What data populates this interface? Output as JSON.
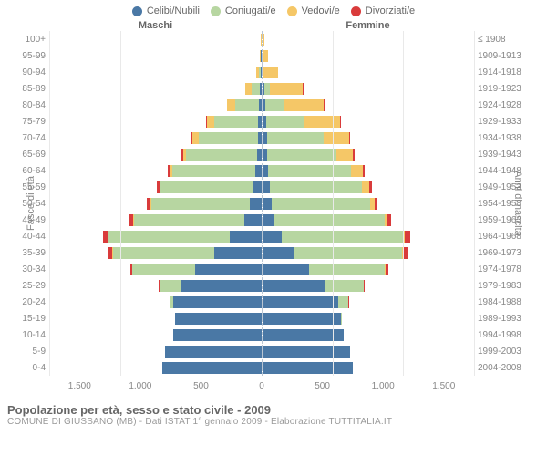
{
  "legend": {
    "items": [
      {
        "label": "Celibi/Nubili",
        "color": "#4a78a5"
      },
      {
        "label": "Coniugati/e",
        "color": "#b7d6a1"
      },
      {
        "label": "Vedovi/e",
        "color": "#f5c767"
      },
      {
        "label": "Divorziati/e",
        "color": "#d93b3b"
      }
    ]
  },
  "header": {
    "left": "Maschi",
    "right": "Femmine"
  },
  "axis": {
    "left_title": "Fasce di età",
    "right_title": "Anni di nascita",
    "x_max": 1500,
    "x_ticks_left": [
      "1.500",
      "1.000",
      "500"
    ],
    "x_ticks_mid": "0",
    "x_ticks_right": [
      "500",
      "1.000",
      "1.500"
    ]
  },
  "colors": {
    "celibi": "#4a78a5",
    "coniugati": "#b7d6a1",
    "vedovi": "#f5c767",
    "divorziati": "#d93b3b",
    "grid": "#e9e9e9",
    "midline": "#b9c6d3",
    "bg": "#ffffff"
  },
  "caption": {
    "main": "Popolazione per età, sesso e stato civile - 2009",
    "sub": "COMUNE DI GIUSSANO (MB) - Dati ISTAT 1° gennaio 2009 - Elaborazione TUTTITALIA.IT"
  },
  "rows": [
    {
      "age": "100+",
      "born": "≤ 1908",
      "m": {
        "c": 0,
        "k": 0,
        "v": 5,
        "d": 0
      },
      "f": {
        "c": 0,
        "k": 0,
        "v": 15,
        "d": 0
      }
    },
    {
      "age": "95-99",
      "born": "1909-1913",
      "m": {
        "c": 3,
        "k": 2,
        "v": 8,
        "d": 0
      },
      "f": {
        "c": 2,
        "k": 0,
        "v": 40,
        "d": 0
      }
    },
    {
      "age": "90-94",
      "born": "1914-1918",
      "m": {
        "c": 5,
        "k": 10,
        "v": 20,
        "d": 0
      },
      "f": {
        "c": 5,
        "k": 5,
        "v": 100,
        "d": 0
      }
    },
    {
      "age": "85-89",
      "born": "1919-1923",
      "m": {
        "c": 10,
        "k": 60,
        "v": 40,
        "d": 2
      },
      "f": {
        "c": 15,
        "k": 40,
        "v": 230,
        "d": 2
      }
    },
    {
      "age": "80-84",
      "born": "1924-1928",
      "m": {
        "c": 15,
        "k": 170,
        "v": 55,
        "d": 4
      },
      "f": {
        "c": 25,
        "k": 130,
        "v": 280,
        "d": 4
      }
    },
    {
      "age": "75-79",
      "born": "1929-1933",
      "m": {
        "c": 20,
        "k": 310,
        "v": 55,
        "d": 6
      },
      "f": {
        "c": 30,
        "k": 270,
        "v": 250,
        "d": 6
      }
    },
    {
      "age": "70-74",
      "born": "1934-1938",
      "m": {
        "c": 25,
        "k": 420,
        "v": 40,
        "d": 8
      },
      "f": {
        "c": 35,
        "k": 400,
        "v": 180,
        "d": 8
      }
    },
    {
      "age": "65-69",
      "born": "1939-1943",
      "m": {
        "c": 30,
        "k": 500,
        "v": 25,
        "d": 10
      },
      "f": {
        "c": 35,
        "k": 490,
        "v": 120,
        "d": 12
      }
    },
    {
      "age": "60-64",
      "born": "1944-1948",
      "m": {
        "c": 40,
        "k": 590,
        "v": 15,
        "d": 14
      },
      "f": {
        "c": 40,
        "k": 590,
        "v": 80,
        "d": 16
      }
    },
    {
      "age": "55-59",
      "born": "1949-1953",
      "m": {
        "c": 60,
        "k": 650,
        "v": 10,
        "d": 18
      },
      "f": {
        "c": 55,
        "k": 650,
        "v": 50,
        "d": 20
      }
    },
    {
      "age": "50-54",
      "born": "1954-1958",
      "m": {
        "c": 80,
        "k": 700,
        "v": 6,
        "d": 22
      },
      "f": {
        "c": 65,
        "k": 700,
        "v": 30,
        "d": 24
      }
    },
    {
      "age": "45-49",
      "born": "1959-1963",
      "m": {
        "c": 120,
        "k": 780,
        "v": 4,
        "d": 28
      },
      "f": {
        "c": 85,
        "k": 780,
        "v": 18,
        "d": 30
      }
    },
    {
      "age": "40-44",
      "born": "1964-1968",
      "m": {
        "c": 220,
        "k": 860,
        "v": 3,
        "d": 34
      },
      "f": {
        "c": 140,
        "k": 860,
        "v": 10,
        "d": 38
      }
    },
    {
      "age": "35-39",
      "born": "1969-1973",
      "m": {
        "c": 330,
        "k": 720,
        "v": 2,
        "d": 26
      },
      "f": {
        "c": 230,
        "k": 760,
        "v": 6,
        "d": 30
      }
    },
    {
      "age": "30-34",
      "born": "1974-1978",
      "m": {
        "c": 470,
        "k": 440,
        "v": 0,
        "d": 14
      },
      "f": {
        "c": 330,
        "k": 540,
        "v": 3,
        "d": 18
      }
    },
    {
      "age": "25-29",
      "born": "1979-1983",
      "m": {
        "c": 570,
        "k": 150,
        "v": 0,
        "d": 6
      },
      "f": {
        "c": 440,
        "k": 280,
        "v": 0,
        "d": 8
      }
    },
    {
      "age": "20-24",
      "born": "1984-1988",
      "m": {
        "c": 620,
        "k": 20,
        "v": 0,
        "d": 2
      },
      "f": {
        "c": 540,
        "k": 70,
        "v": 0,
        "d": 3
      }
    },
    {
      "age": "15-19",
      "born": "1989-1993",
      "m": {
        "c": 610,
        "k": 0,
        "v": 0,
        "d": 0
      },
      "f": {
        "c": 560,
        "k": 3,
        "v": 0,
        "d": 0
      }
    },
    {
      "age": "10-14",
      "born": "1994-1998",
      "m": {
        "c": 620,
        "k": 0,
        "v": 0,
        "d": 0
      },
      "f": {
        "c": 580,
        "k": 0,
        "v": 0,
        "d": 0
      }
    },
    {
      "age": "5-9",
      "born": "1999-2003",
      "m": {
        "c": 680,
        "k": 0,
        "v": 0,
        "d": 0
      },
      "f": {
        "c": 620,
        "k": 0,
        "v": 0,
        "d": 0
      }
    },
    {
      "age": "0-4",
      "born": "2004-2008",
      "m": {
        "c": 700,
        "k": 0,
        "v": 0,
        "d": 0
      },
      "f": {
        "c": 640,
        "k": 0,
        "v": 0,
        "d": 0
      }
    }
  ]
}
